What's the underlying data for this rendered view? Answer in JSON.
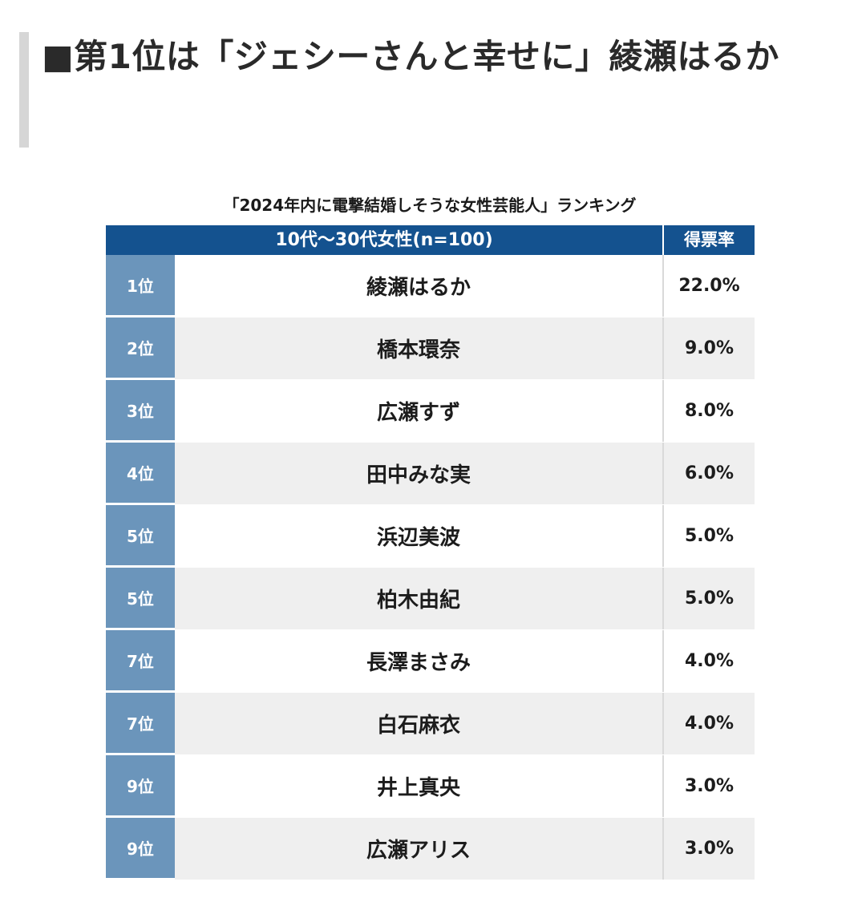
{
  "article": {
    "heading": "■第1位は「ジェシーさんと幸せに」綾瀬はるか"
  },
  "table": {
    "caption": "「2024年内に電撃結婚しそうな女性芸能人」ランキング",
    "header_group": "10代〜30代女性(n=100)",
    "header_rate": "得票率",
    "rows": [
      {
        "rank": "1位",
        "name": "綾瀬はるか",
        "rate": "22.0%"
      },
      {
        "rank": "2位",
        "name": "橋本環奈",
        "rate": "9.0%"
      },
      {
        "rank": "3位",
        "name": "広瀬すず",
        "rate": "8.0%"
      },
      {
        "rank": "4位",
        "name": "田中みな実",
        "rate": "6.0%"
      },
      {
        "rank": "5位",
        "name": "浜辺美波",
        "rate": "5.0%"
      },
      {
        "rank": "5位",
        "name": "柏木由紀",
        "rate": "5.0%"
      },
      {
        "rank": "7位",
        "name": "長澤まさみ",
        "rate": "4.0%"
      },
      {
        "rank": "7位",
        "name": "白石麻衣",
        "rate": "4.0%"
      },
      {
        "rank": "9位",
        "name": "井上真央",
        "rate": "3.0%"
      },
      {
        "rank": "9位",
        "name": "広瀬アリス",
        "rate": "3.0%"
      }
    ]
  },
  "colors": {
    "header_bg": "#14528f",
    "rank_bg": "#6b95bb",
    "row_alt_bg": "#efefef",
    "heading_bar": "#d6d6d6"
  }
}
